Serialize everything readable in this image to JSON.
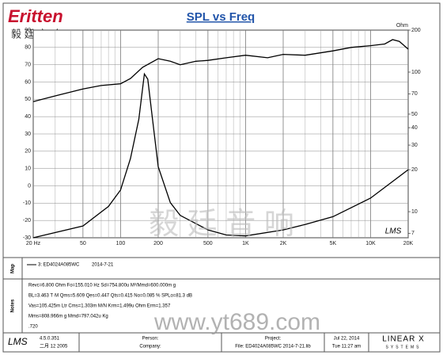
{
  "logo": {
    "brand": "Eritten",
    "cn": "毅 廷 音 响"
  },
  "chart_data": {
    "type": "line",
    "title": "SPL vs Freq",
    "y2label": "Ohm",
    "xscale": "log",
    "xlim": [
      20,
      20000
    ],
    "xticks": [
      {
        "value": 20,
        "label": "20 Hz"
      },
      50,
      100,
      200,
      500,
      {
        "value": 1000,
        "label": "1K"
      },
      {
        "value": 2000,
        "label": "2K"
      },
      {
        "value": 5000,
        "label": "5K"
      },
      {
        "value": 10000,
        "label": "10K"
      },
      {
        "value": 20000,
        "label": "20K"
      }
    ],
    "xminorticks": [
      30,
      40,
      60,
      70,
      80,
      90,
      300,
      400,
      600,
      700,
      800,
      900,
      3000,
      4000,
      6000,
      7000,
      8000,
      9000
    ],
    "ylim": [
      -30,
      90
    ],
    "yticks": [
      -30,
      -20,
      -10,
      0,
      10,
      20,
      30,
      40,
      50,
      60,
      70,
      80,
      90
    ],
    "y2scale": "log",
    "y2lim": [
      6.5,
      200
    ],
    "y2ticks": [
      7,
      10,
      20,
      30,
      40,
      50,
      70,
      100,
      200
    ],
    "grid": true,
    "series": [
      {
        "color": "#000000",
        "axis": "y",
        "x": [
          20,
          30,
          50,
          70,
          100,
          120,
          150,
          200,
          250,
          300,
          400,
          500,
          700,
          1000,
          1500,
          2000,
          3000,
          5000,
          7000,
          10000,
          13000,
          15000,
          17000,
          20000
        ],
        "values": [
          48.7,
          52,
          56,
          58,
          59,
          62,
          68.5,
          73.5,
          72,
          70,
          72,
          72.5,
          74,
          75.5,
          74,
          76,
          75.5,
          78,
          80,
          81,
          82,
          84.5,
          83.5,
          79
        ]
      },
      {
        "color": "#000000",
        "axis": "y2",
        "x": [
          20,
          50,
          80,
          100,
          120,
          140,
          155,
          165,
          180,
          200,
          250,
          300,
          500,
          700,
          1000,
          2000,
          3000,
          5000,
          10000,
          20000
        ],
        "values": [
          6.5,
          7.9,
          10.9,
          14.3,
          24,
          46,
          97,
          89,
          46,
          21,
          11.6,
          9.4,
          7.4,
          6.8,
          6.7,
          7.4,
          8.1,
          9.2,
          12.5,
          20
        ]
      }
    ],
    "plot_mark": "LMS",
    "watermark": "毅 廷 音 响"
  },
  "map": {
    "label": "Map",
    "entry": "3: ED4024A085WC",
    "date": "2014-7-21"
  },
  "notes": {
    "label": "Notes",
    "lines": [
      "Revc=6.800 Ohm  Fo=155.010 Hz  Sd=754.800u M²/Mmd=600.000m g",
      "BL=3.463 T·M  Qms=5.609  Qes=0.447  Qts=0.415  No=0.085 %  SPLo=81.3 dB",
      "Vas=105.425m Ltr  Cms=1.303m M/N  Krm=1.499u Ohm  Erm=1.357",
      "Mms=808.966m g  Mmd=797.042u Kg",
      ".720"
    ]
  },
  "watermark_url": "www.yt689.com",
  "footer": {
    "logo": "LMS",
    "version": "4.5.0.351",
    "build": "二月 12 2005",
    "person": "Person:",
    "company": "Company:",
    "project": "Project:",
    "file": "File: ED4024A085WC   2014-7-21.lib",
    "date": "Jul 22, 2014",
    "time": "Tue 11:27 am",
    "brand": "LINEAR X",
    "brand_sub": "SYSTEMS"
  }
}
